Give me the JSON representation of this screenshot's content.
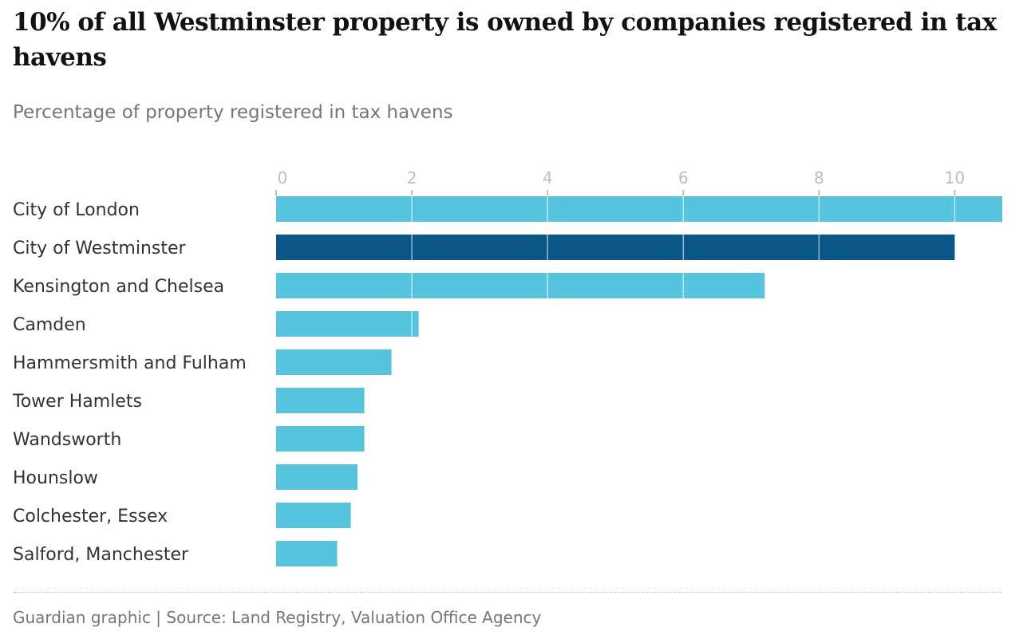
{
  "chart_data": {
    "type": "bar",
    "orientation": "horizontal",
    "title": "10% of all Westminster property is owned by companies registered in tax havens",
    "subtitle": "Percentage of property registered in tax havens",
    "categories": [
      "City of London",
      "City of Westminster",
      "Kensington and Chelsea",
      "Camden",
      "Hammersmith and Fulham",
      "Tower Hamlets",
      "Wandsworth",
      "Hounslow",
      "Colchester, Essex",
      "Salford, Manchester"
    ],
    "values": [
      10.7,
      10.0,
      7.2,
      2.1,
      1.7,
      1.3,
      1.3,
      1.2,
      1.1,
      0.9
    ],
    "highlight": "City of Westminster",
    "xlim": [
      0,
      10.7
    ],
    "ticks": [
      0,
      2,
      4,
      6,
      8,
      10
    ],
    "tick_labels": [
      "0",
      "2",
      "4",
      "6",
      "8",
      "10"
    ],
    "xlabel": "",
    "ylabel": "",
    "grid": true,
    "axis_position": "top",
    "colors": {
      "default": "#56c4dc",
      "highlight": "#0a5787",
      "gridline": "#ffffff",
      "tick": "#bdbdbd"
    },
    "source": "Guardian graphic | Source: Land Registry, Valuation Office Agency"
  }
}
